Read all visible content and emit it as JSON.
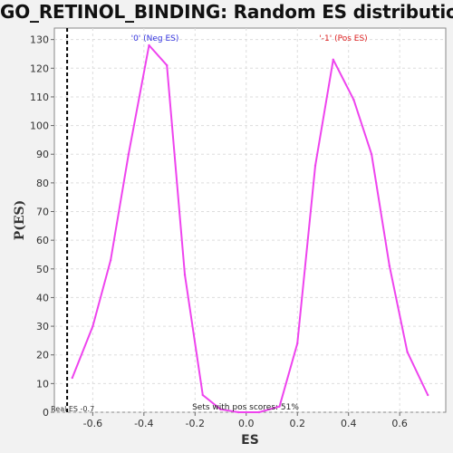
{
  "title": "GO_RETINOL_BINDING: Random ES distribution",
  "chart_data": {
    "type": "line",
    "xlabel": "ES",
    "ylabel": "P(ES)",
    "xlim": [
      -0.75,
      0.78
    ],
    "ylim": [
      0,
      134
    ],
    "grid": true,
    "x_ticks": [
      "-0.6",
      "-0.4",
      "-0.2",
      "0.0",
      "0.2",
      "0.4",
      "0.6"
    ],
    "x_tick_values": [
      -0.6,
      -0.4,
      -0.2,
      0.0,
      0.2,
      0.4,
      0.6
    ],
    "y_ticks": [
      "0",
      "10",
      "20",
      "30",
      "40",
      "50",
      "60",
      "70",
      "80",
      "90",
      "100",
      "110",
      "120",
      "130"
    ],
    "y_tick_values": [
      0,
      10,
      20,
      30,
      40,
      50,
      60,
      70,
      80,
      90,
      100,
      110,
      120,
      130
    ],
    "series": [
      {
        "color": "#ee44ee",
        "x": [
          -0.68,
          -0.6,
          -0.53,
          -0.46,
          -0.38,
          -0.31,
          -0.24,
          -0.17,
          -0.1,
          -0.03,
          0.05,
          0.13,
          0.2,
          0.27,
          0.34,
          0.42,
          0.49,
          0.56,
          0.63,
          0.71
        ],
        "y": [
          12,
          30,
          53,
          90,
          128,
          121,
          48,
          6,
          1,
          0,
          0,
          2,
          24,
          86,
          123,
          109,
          90,
          51,
          21,
          6
        ]
      }
    ],
    "threshold": {
      "x": -0.7,
      "label": "Real ES -0.7",
      "color": "#000000"
    },
    "annotations": {
      "neg_label": "'0' (Neg ES)",
      "neg_color": "#3333dd",
      "pos_label": "'-1' (Pos ES)",
      "pos_color": "#dd2222",
      "footer": "Sets with pos scores: 51%"
    }
  }
}
